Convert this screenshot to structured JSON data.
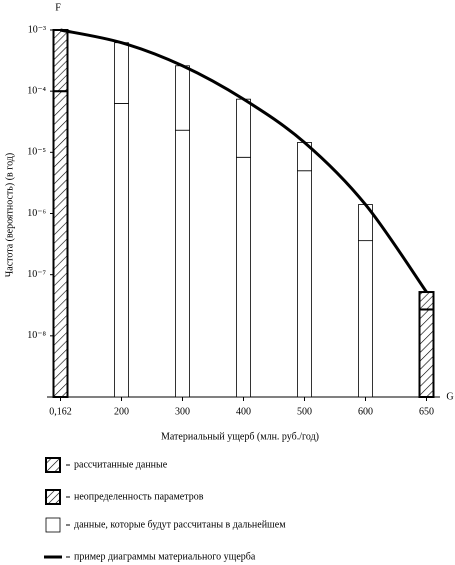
{
  "chart_data": {
    "type": "bar",
    "y_axis_symbol": "F",
    "x_axis_symbol": "G",
    "ylabel": "Частота (вероятность) (в год)",
    "xlabel": "Материальный ущерб (млн. руб./год)",
    "categories": [
      "0,162",
      "200",
      "300",
      "400",
      "500",
      "600",
      "650"
    ],
    "log_y": true,
    "ylim": [
      1e-09,
      0.001
    ],
    "yticks": [
      {
        "value": 1e-08,
        "label": "10⁻⁸"
      },
      {
        "value": 1e-07,
        "label": "10⁻⁷"
      },
      {
        "value": 1e-06,
        "label": "10⁻⁶"
      },
      {
        "value": 1e-05,
        "label": "10⁻⁵"
      },
      {
        "value": 0.0001,
        "label": "10⁻⁴"
      },
      {
        "value": 0.001,
        "label": "10⁻³"
      }
    ],
    "series": [
      {
        "name": "рассчитанные данные",
        "color": "#000000",
        "values": [
          0.0001,
          null,
          null,
          null,
          null,
          null,
          2.7e-08
        ]
      },
      {
        "name": "неопределенность параметров",
        "color": "#000000",
        "values": [
          0.001,
          null,
          null,
          null,
          null,
          null,
          5.2e-08
        ]
      },
      {
        "name": "данные, которые будут рассчитаны в дальнейшем",
        "color": "#ffffff",
        "values": [
          null,
          6.3e-05,
          2.3e-05,
          8.3e-06,
          5e-06,
          3.6e-07,
          null
        ]
      },
      {
        "name": "пример диаграммы материального ущерба",
        "color": "#000000",
        "values": [
          0.001,
          0.00062,
          0.00026,
          7.4e-05,
          1.45e-05,
          1.4e-06,
          5.2e-08
        ]
      }
    ]
  }
}
